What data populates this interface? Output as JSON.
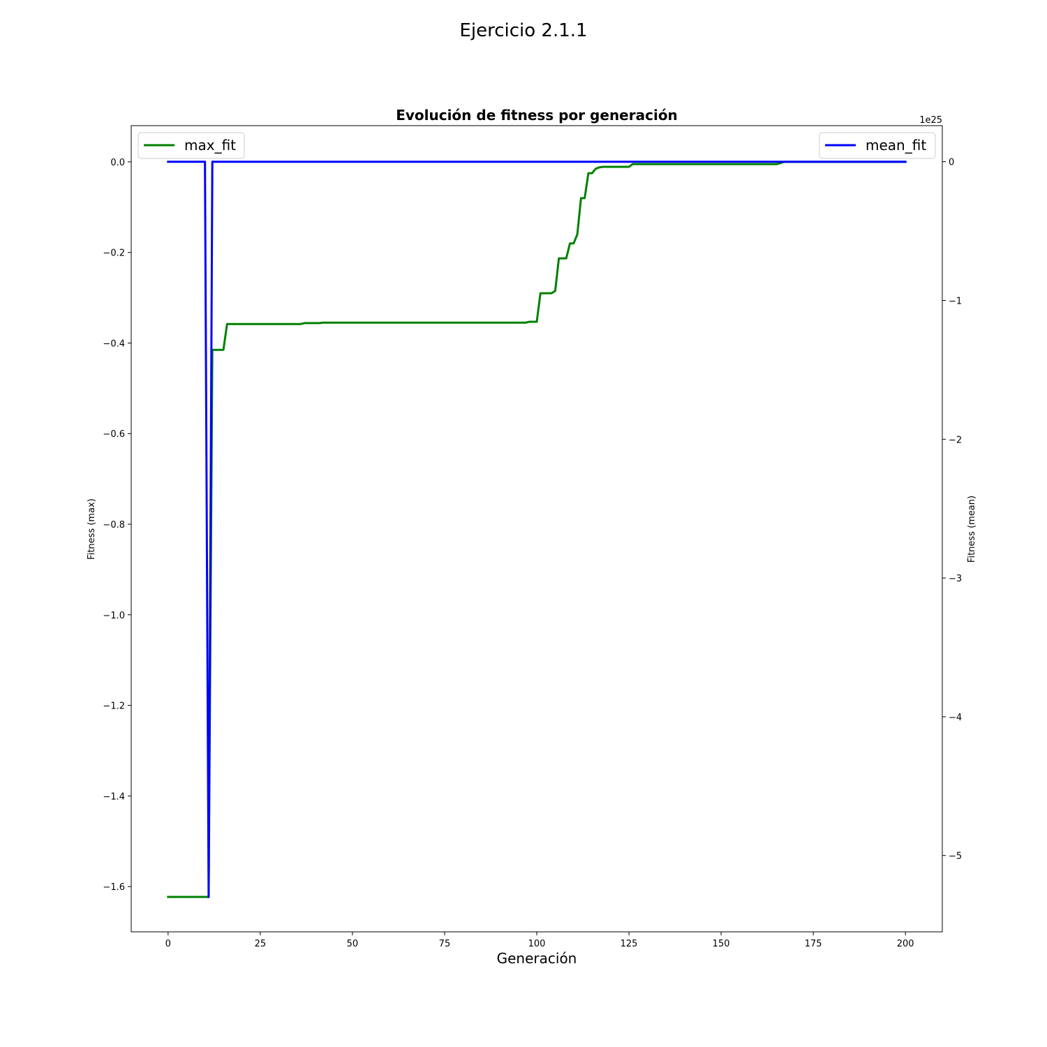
{
  "figure": {
    "suptitle": "Ejercicio 2.1.1"
  },
  "chart_data": {
    "type": "line",
    "title": "Evolución de fitness por generación",
    "xlabel": "Generación",
    "xlim": [
      -10,
      210
    ],
    "xticks": [
      0,
      25,
      50,
      75,
      100,
      125,
      150,
      175,
      200
    ],
    "left_axis": {
      "label": "Fitness (max)",
      "ylim": [
        -1.7,
        0.08
      ],
      "ticks": [
        0.0,
        -0.2,
        -0.4,
        -0.6,
        -0.8,
        -1.0,
        -1.2,
        -1.4,
        -1.6
      ],
      "tick_labels": [
        "0.0",
        "−0.2",
        "−0.4",
        "−0.6",
        "−0.8",
        "−1.0",
        "−1.2",
        "−1.4",
        "−1.6"
      ]
    },
    "right_axis": {
      "label": "Fitness (mean)",
      "offset_text": "1e25",
      "ylim": [
        -5.55,
        0.26
      ],
      "ticks": [
        0,
        -1,
        -2,
        -3,
        -4,
        -5
      ],
      "tick_labels": [
        "0",
        "−1",
        "−2",
        "−3",
        "−4",
        "−5"
      ]
    },
    "series": [
      {
        "name": "max_fit",
        "axis": "left",
        "color": "#008000",
        "legend_position": "upper left",
        "x": [
          0,
          11,
          12,
          15,
          16,
          36,
          37,
          41,
          42,
          97,
          98,
          100,
          101,
          104,
          105,
          106,
          108,
          109,
          110,
          111,
          112,
          113,
          114,
          115,
          116,
          117,
          118,
          125,
          126,
          165,
          166,
          167,
          200
        ],
        "y": [
          -1.623,
          -1.623,
          -0.415,
          -0.415,
          -0.358,
          -0.358,
          -0.356,
          -0.356,
          -0.355,
          -0.355,
          -0.353,
          -0.353,
          -0.29,
          -0.29,
          -0.285,
          -0.213,
          -0.213,
          -0.18,
          -0.18,
          -0.16,
          -0.08,
          -0.08,
          -0.025,
          -0.025,
          -0.015,
          -0.012,
          -0.011,
          -0.011,
          -0.005,
          -0.005,
          -0.003,
          0.0,
          0.0
        ]
      },
      {
        "name": "mean_fit",
        "axis": "right",
        "color": "#0000ff",
        "legend_position": "upper right",
        "x": [
          0,
          10,
          11,
          12,
          200
        ],
        "y": [
          0,
          0,
          -5.3,
          0,
          0
        ]
      }
    ]
  }
}
